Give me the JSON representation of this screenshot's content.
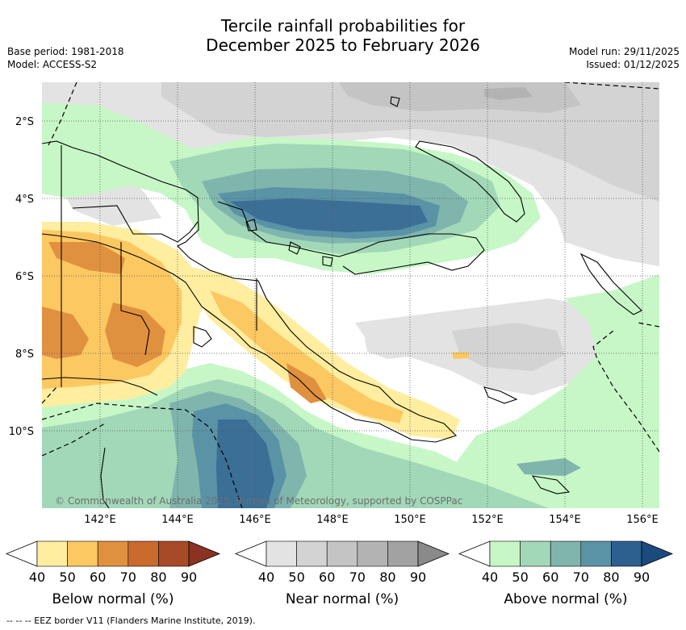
{
  "title": {
    "line1": "Tercile rainfall probabilities for",
    "line2": "December 2025 to February 2026"
  },
  "meta_left": {
    "base_period": "Base period: 1981-2018",
    "model": "Model: ACCESS-S2"
  },
  "meta_right": {
    "model_run": "Model run: 29/11/2025",
    "issued": "Issued: 01/12/2025"
  },
  "map": {
    "lat_labels": [
      "2°S",
      "4°S",
      "6°S",
      "8°S",
      "10°S"
    ],
    "lon_labels": [
      "142°E",
      "144°E",
      "146°E",
      "148°E",
      "150°E",
      "152°E",
      "154°E",
      "156°E"
    ],
    "copyright": "© Commonwealth of Australia 2025, Bureau of Meteorology, supported by COSPPac",
    "gridlines": true
  },
  "legends": [
    {
      "label": "Below normal (%)",
      "ticks": [
        "40",
        "50",
        "60",
        "70",
        "80",
        "90"
      ],
      "colors": [
        "#ffeda0",
        "#fcc862",
        "#e0913f",
        "#c96a2f",
        "#a84a28",
        "#8a3322"
      ]
    },
    {
      "label": "Near normal (%)",
      "ticks": [
        "40",
        "50",
        "60",
        "70",
        "80",
        "90"
      ],
      "colors": [
        "#e3e3e3",
        "#d3d3d3",
        "#c4c4c4",
        "#b3b3b3",
        "#a2a2a2",
        "#8a8a8a"
      ]
    },
    {
      "label": "Above normal (%)",
      "ticks": [
        "40",
        "50",
        "60",
        "70",
        "80",
        "90"
      ],
      "colors": [
        "#c7f7c7",
        "#a2d8b8",
        "#7fb5ad",
        "#5a93a6",
        "#2d5f8f",
        "#1a4a7e"
      ]
    }
  ],
  "footer": "-- -- -- EEZ border V11 (Flanders Marine Institute, 2019)."
}
